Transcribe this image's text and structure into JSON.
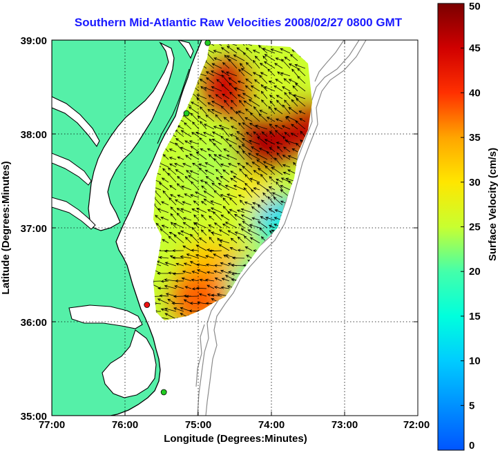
{
  "chart_data": {
    "type": "heatmap",
    "title": "Southern Mid-Atlantic Raw Velocities 2008/02/27 0800 GMT",
    "xlabel": "Longitude (Degrees:Minutes)",
    "ylabel": "Latitude (Degrees:Minutes)",
    "xlim": [
      -77,
      -72
    ],
    "ylim": [
      35,
      39
    ],
    "x_ticks": [
      {
        "value": -77,
        "label": "77:00"
      },
      {
        "value": -76,
        "label": "76:00"
      },
      {
        "value": -75,
        "label": "75:00"
      },
      {
        "value": -74,
        "label": "74:00"
      },
      {
        "value": -73,
        "label": "73:00"
      },
      {
        "value": -72,
        "label": "72:00"
      }
    ],
    "y_ticks": [
      {
        "value": 35,
        "label": "35:00"
      },
      {
        "value": 36,
        "label": "36:00"
      },
      {
        "value": 37,
        "label": "37:00"
      },
      {
        "value": 38,
        "label": "38:00"
      },
      {
        "value": 39,
        "label": "39:00"
      }
    ],
    "grid": true,
    "colorbar": {
      "label": "Surface Velocity (cm/s)",
      "range": [
        0,
        50
      ],
      "ticks": [
        "0",
        "5",
        "10",
        "15",
        "20",
        "25",
        "30",
        "35",
        "40",
        "45",
        "50"
      ]
    },
    "field_blobs": [
      {
        "lon": -74.55,
        "lat": 38.5,
        "speed": 45
      },
      {
        "lon": -74.1,
        "lat": 37.9,
        "speed": 47
      },
      {
        "lon": -73.6,
        "lat": 38.1,
        "speed": 46
      },
      {
        "lon": -73.9,
        "lat": 38.55,
        "speed": 26
      },
      {
        "lon": -74.8,
        "lat": 37.6,
        "speed": 24
      },
      {
        "lon": -74.3,
        "lat": 37.3,
        "speed": 30
      },
      {
        "lon": -74.6,
        "lat": 37.1,
        "speed": 26
      },
      {
        "lon": -73.85,
        "lat": 37.05,
        "speed": 10
      },
      {
        "lon": -73.7,
        "lat": 36.85,
        "speed": 18
      },
      {
        "lon": -74.9,
        "lat": 36.6,
        "speed": 32
      },
      {
        "lon": -74.5,
        "lat": 36.5,
        "speed": 34
      },
      {
        "lon": -75.0,
        "lat": 36.25,
        "speed": 38
      },
      {
        "lon": -74.2,
        "lat": 36.4,
        "speed": 20
      }
    ],
    "stations": [
      {
        "lon": -74.87,
        "lat": 38.97,
        "color": "#22cc22"
      },
      {
        "lon": -75.16,
        "lat": 38.22,
        "color": "#22cc22"
      },
      {
        "lon": -75.7,
        "lat": 36.18,
        "color": "#ee1111"
      },
      {
        "lon": -75.47,
        "lat": 35.25,
        "color": "#22cc22"
      }
    ],
    "colors": {
      "land": "#55f0a8",
      "coast": "#000000",
      "bathymetry": "#8a8a8a",
      "title": "#1a1aff"
    }
  }
}
